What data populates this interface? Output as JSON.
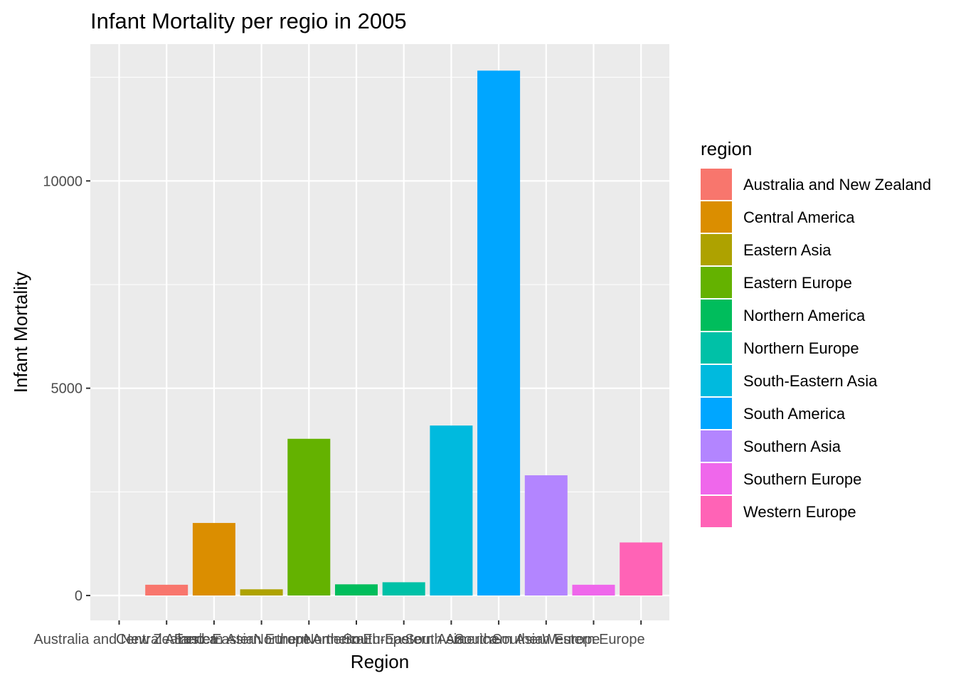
{
  "chart_data": {
    "type": "bar",
    "title": "Infant Mortality per regio in 2005",
    "xlabel": "Region",
    "ylabel": "Infant Mortality",
    "categories": [
      "Australia and New Zealand",
      "Central America",
      "Eastern Asia",
      "Eastern Europe",
      "Northern America",
      "Northern Europe",
      "South-Eastern Asia",
      "South America",
      "Southern Asia",
      "Southern Europe",
      "Western Europe"
    ],
    "x_ticks": [
      "Australia and New Zealand",
      "Central America",
      "Eastern Asia",
      "Eastern Europe",
      "Northern America",
      "Northern Europe",
      "South-Eastern Asia",
      "South America",
      "Southern Asia",
      "Southern Europe",
      "Western Europe",
      ""
    ],
    "bar_positions": [
      2,
      3,
      4,
      5,
      6,
      7,
      8,
      9,
      10,
      11,
      12
    ],
    "values": [
      260,
      1750,
      150,
      3780,
      270,
      320,
      4100,
      12660,
      2900,
      260,
      1280
    ],
    "colors": [
      "#F8766D",
      "#DB8E00",
      "#AEA200",
      "#64B200",
      "#00BD5C",
      "#00C1A7",
      "#00BADE",
      "#00A6FF",
      "#B385FF",
      "#EF67EB",
      "#FF63B6"
    ],
    "ylim": [
      -600,
      13300
    ],
    "yticks": [
      0,
      5000,
      10000
    ],
    "legend": {
      "title": "region",
      "position": "right"
    },
    "grid": true
  }
}
